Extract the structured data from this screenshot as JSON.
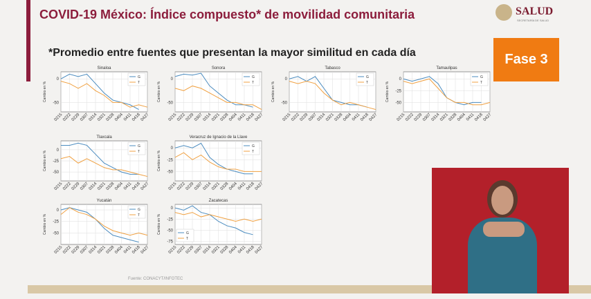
{
  "header": {
    "title": "COVID-19 México: Índice compuesto* de movilidad comunitaria",
    "subtitle": "*Promedio entre fuentes que presentan la mayor similitud en cada día",
    "badge": "Fase 3",
    "logo": "SALUD",
    "logo_sub": "SECRETARÍA DE SALUD",
    "source": "Fuente: CONACYT/INFOTEC"
  },
  "chart_data": [
    {
      "type": "line",
      "title": "Sinaloa",
      "ylabel": "Cambio en %",
      "x": [
        "0215",
        "0222",
        "0229",
        "0307",
        "0314",
        "0321",
        "0328",
        "0404",
        "0411",
        "0418",
        "0427"
      ],
      "ylim": [
        -70,
        15
      ],
      "yticks": [
        -50,
        0
      ],
      "grid": true,
      "legend": "upper right",
      "series": [
        {
          "name": "G",
          "color": "#4a8bbf",
          "values": [
            0,
            10,
            5,
            10,
            -10,
            -30,
            -45,
            -50,
            -55,
            -65,
            null
          ]
        },
        {
          "name": "T",
          "color": "#f0a040",
          "values": [
            -5,
            -10,
            -20,
            -10,
            -25,
            -35,
            -50,
            -50,
            -60,
            -55,
            -60
          ]
        }
      ]
    },
    {
      "type": "line",
      "title": "Sonora",
      "ylabel": "Cambio en %",
      "x": [
        "0215",
        "0222",
        "0229",
        "0307",
        "0314",
        "0321",
        "0328",
        "0404",
        "0411",
        "0418",
        "0427"
      ],
      "ylim": [
        -70,
        15
      ],
      "yticks": [
        -50,
        0
      ],
      "grid": true,
      "legend": "upper right",
      "series": [
        {
          "name": "G",
          "color": "#4a8bbf",
          "values": [
            5,
            10,
            8,
            12,
            -15,
            -30,
            -45,
            -55,
            -55,
            -60,
            null
          ]
        },
        {
          "name": "T",
          "color": "#f0a040",
          "values": [
            -20,
            -25,
            -15,
            -20,
            -30,
            -40,
            -50,
            -50,
            -55,
            -55,
            -65
          ]
        }
      ]
    },
    {
      "type": "line",
      "title": "Tabasco",
      "ylabel": "Cambio en %",
      "x": [
        "0215",
        "0222",
        "0229",
        "0307",
        "0314",
        "0321",
        "0328",
        "0404",
        "0411",
        "0418",
        "0427"
      ],
      "ylim": [
        -70,
        15
      ],
      "yticks": [
        -50,
        0
      ],
      "grid": true,
      "legend": "upper right",
      "series": [
        {
          "name": "G",
          "color": "#4a8bbf",
          "values": [
            0,
            5,
            -5,
            5,
            -20,
            -45,
            -50,
            -55,
            -55,
            -60,
            null
          ]
        },
        {
          "name": "T",
          "color": "#f0a040",
          "values": [
            -5,
            -10,
            -5,
            -10,
            -30,
            -45,
            -55,
            -50,
            -55,
            -60,
            -65
          ]
        }
      ]
    },
    {
      "type": "line",
      "title": "Tamaulipas",
      "ylabel": "Cambio en %",
      "x": [
        "0215",
        "0222",
        "0229",
        "0307",
        "0314",
        "0321",
        "0328",
        "0404",
        "0411",
        "0418",
        "0427"
      ],
      "ylim": [
        -70,
        15
      ],
      "yticks": [
        -50,
        -25,
        0
      ],
      "grid": true,
      "legend": "upper right",
      "series": [
        {
          "name": "G",
          "color": "#4a8bbf",
          "values": [
            0,
            -5,
            0,
            5,
            -10,
            -40,
            -50,
            -55,
            -50,
            -50,
            null
          ]
        },
        {
          "name": "T",
          "color": "#f0a040",
          "values": [
            -5,
            -10,
            -5,
            0,
            -20,
            -40,
            -50,
            -50,
            -55,
            -55,
            -50
          ]
        }
      ]
    },
    {
      "type": "line",
      "title": "Tlaxcala",
      "ylabel": "Cambio en %",
      "x": [
        "0215",
        "0222",
        "0229",
        "0307",
        "0314",
        "0321",
        "0328",
        "0404",
        "0411",
        "0418",
        "0427"
      ],
      "ylim": [
        -70,
        20
      ],
      "yticks": [
        -50,
        -25,
        0
      ],
      "grid": true,
      "legend": "upper right",
      "series": [
        {
          "name": "G",
          "color": "#4a8bbf",
          "values": [
            10,
            10,
            15,
            10,
            -10,
            -30,
            -40,
            -50,
            -55,
            -55,
            null
          ]
        },
        {
          "name": "T",
          "color": "#f0a040",
          "values": [
            -20,
            -15,
            -30,
            -20,
            -30,
            -40,
            -45,
            -45,
            -50,
            -55,
            -60
          ]
        }
      ]
    },
    {
      "type": "line",
      "title": "Veracruz de Ignacio de la Llave",
      "ylabel": "Cambio en %",
      "x": [
        "0215",
        "0222",
        "0229",
        "0307",
        "0314",
        "0321",
        "0328",
        "0404",
        "0411",
        "0418",
        "0427"
      ],
      "ylim": [
        -70,
        15
      ],
      "yticks": [
        -50,
        -25,
        0
      ],
      "grid": true,
      "legend": "upper right",
      "series": [
        {
          "name": "G",
          "color": "#4a8bbf",
          "values": [
            0,
            5,
            0,
            10,
            -20,
            -35,
            -45,
            -50,
            -55,
            -55,
            null
          ]
        },
        {
          "name": "T",
          "color": "#f0a040",
          "values": [
            -20,
            -10,
            -25,
            -15,
            -30,
            -40,
            -45,
            -45,
            -50,
            -50,
            -50
          ]
        }
      ]
    },
    {
      "type": "line",
      "title": "Yucatán",
      "ylabel": "Cambio en %",
      "x": [
        "0215",
        "0222",
        "0229",
        "0307",
        "0314",
        "0321",
        "0328",
        "0404",
        "0411",
        "0418",
        "0427"
      ],
      "ylim": [
        -75,
        12
      ],
      "yticks": [
        -50,
        -25,
        0
      ],
      "grid": true,
      "legend": "upper right",
      "series": [
        {
          "name": "G",
          "color": "#4a8bbf",
          "values": [
            0,
            5,
            0,
            -5,
            -20,
            -40,
            -55,
            -60,
            -65,
            -70,
            null
          ]
        },
        {
          "name": "T",
          "color": "#f0a040",
          "values": [
            -10,
            5,
            -5,
            -10,
            -20,
            -35,
            -45,
            -50,
            -55,
            -50,
            -55
          ]
        }
      ]
    },
    {
      "type": "line",
      "title": "Zacatecas",
      "ylabel": "Cambio en %",
      "x": [
        "0215",
        "0222",
        "0229",
        "0307",
        "0314",
        "0321",
        "0328",
        "0404",
        "0411",
        "0418",
        "0427"
      ],
      "ylim": [
        -82,
        8
      ],
      "yticks": [
        -75,
        -50,
        -25,
        0
      ],
      "grid": true,
      "legend": "lower left",
      "series": [
        {
          "name": "G",
          "color": "#4a8bbf",
          "values": [
            0,
            -5,
            5,
            -10,
            -15,
            -30,
            -40,
            -45,
            -55,
            -60,
            null
          ]
        },
        {
          "name": "T",
          "color": "#f0a040",
          "values": [
            -10,
            -15,
            -10,
            -20,
            -15,
            -20,
            -25,
            -30,
            -25,
            -30,
            -25
          ]
        }
      ]
    }
  ]
}
